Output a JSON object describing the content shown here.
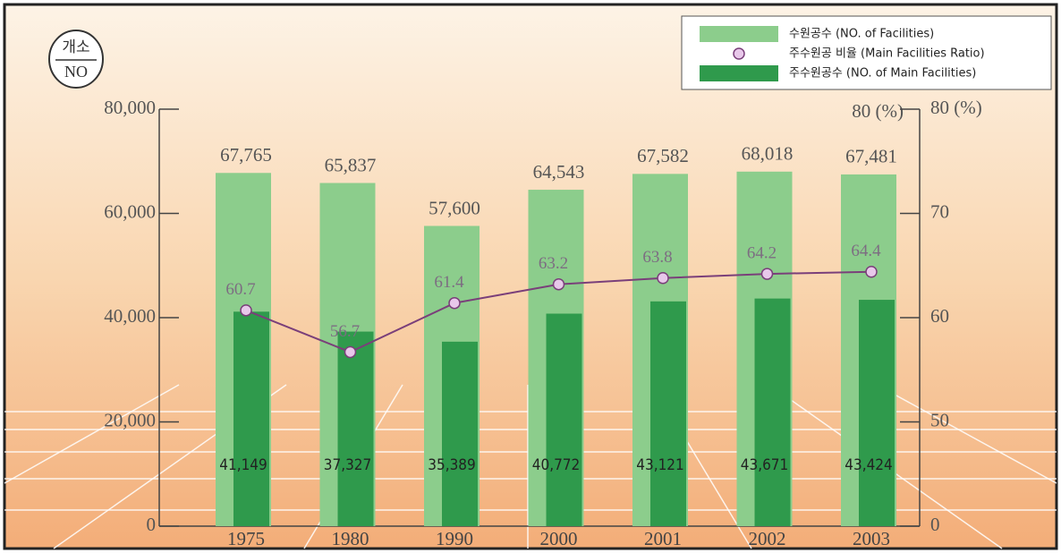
{
  "chart_data": {
    "type": "bar",
    "categories": [
      "1975",
      "1980",
      "1990",
      "2000",
      "2001",
      "2002",
      "2003"
    ],
    "series": [
      {
        "name": "수원공수 (NO. of Facilities)",
        "color": "#8ccd8c",
        "values": [
          67765,
          65837,
          57600,
          64543,
          67582,
          68018,
          67481
        ],
        "value_labels": [
          "67,765",
          "65,837",
          "57,600",
          "64,543",
          "67,582",
          "68,018",
          "67,481"
        ]
      },
      {
        "name": "주수원공 비율 (Main Facilities Ratio)",
        "type": "line",
        "axis": "y2",
        "color": "#7a3f7a",
        "values": [
          60.7,
          56.7,
          61.4,
          63.2,
          63.8,
          64.2,
          64.4
        ]
      },
      {
        "name": "주수원공수 (NO. of Main Facilities)",
        "color": "#2f9a4c",
        "values": [
          41149,
          37327,
          35389,
          40772,
          43121,
          43671,
          43424
        ],
        "value_labels": [
          "41,149",
          "37,327",
          "35,389",
          "40,772",
          "43,121",
          "43,671",
          "43,424"
        ]
      }
    ],
    "ylim": [
      0,
      80000
    ],
    "yticks": [
      0,
      {
        "value": 20000,
        "label": "20,000"
      },
      {
        "value": 40000,
        "label": "40,000"
      },
      {
        "value": 60000,
        "label": "60,000"
      },
      {
        "value": 80000,
        "label": "80,000"
      }
    ],
    "y2lim": [
      40,
      80
    ],
    "y2ticks": [
      {
        "value": 40,
        "label": "0"
      },
      50,
      60,
      70,
      {
        "value": 80,
        "label": "80 (%)"
      }
    ],
    "y_unit": {
      "top": "개소",
      "bottom": "NO"
    },
    "annotations": [
      "80 (%)"
    ]
  }
}
